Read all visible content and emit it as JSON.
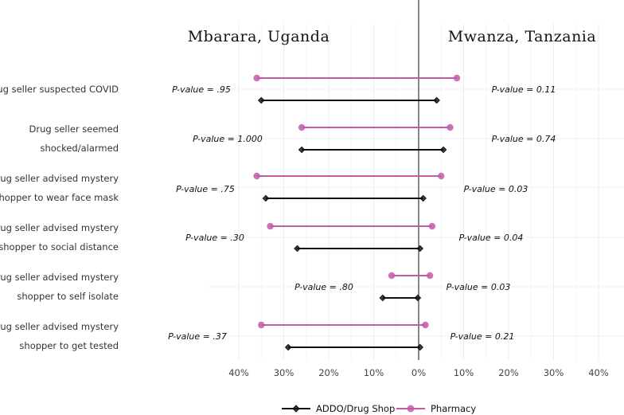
{
  "chart_data": {
    "type": "dumbbell",
    "regions": {
      "left": "Mbarara, Uganda",
      "right": "Mwanza, Tanzania"
    },
    "categories": [
      {
        "lines": [
          "Drug seller suspected COVID"
        ]
      },
      {
        "lines": [
          "Drug seller seemed",
          "shocked/alarmed"
        ]
      },
      {
        "lines": [
          "Drug seller advised mystery",
          "shopper to wear face mask"
        ]
      },
      {
        "lines": [
          "Drug seller advised mystery",
          "shopper to social distance"
        ]
      },
      {
        "lines": [
          "Drug seller advised mystery",
          "shopper to self isolate"
        ]
      },
      {
        "lines": [
          "Drug seller advised mystery",
          "shopper to get tested"
        ]
      }
    ],
    "series": [
      {
        "name": "Pharmacy",
        "color": "#c45aa6",
        "marker": "circle",
        "uganda": [
          36,
          26,
          36,
          33,
          6,
          35
        ],
        "tanzania": [
          8.5,
          7,
          5,
          3,
          2.5,
          1.5
        ]
      },
      {
        "name": "ADDO/Drug Shop",
        "color": "#111111",
        "marker": "diamond",
        "uganda": [
          35,
          26,
          34,
          27,
          8,
          29
        ],
        "tanzania": [
          4,
          5.5,
          1,
          0.3,
          -0.2,
          0.3
        ]
      }
    ],
    "pvalues": {
      "uganda": [
        "P-value = .95",
        "P-value = 1.000",
        "P-value = .75",
        "P-value = .30",
        "P-value = .80",
        "P-value = .37"
      ],
      "tanzania": [
        "P-value = 0.11",
        "P-value = 0.74",
        "P-value = 0.03",
        "P-value = 0.04",
        "P-value = 0.03",
        "P-value = 0.21"
      ]
    },
    "x_ticks": [
      {
        "value": -40,
        "label": "40%"
      },
      {
        "value": -30,
        "label": "30%"
      },
      {
        "value": -20,
        "label": "20%"
      },
      {
        "value": -10,
        "label": "10%"
      },
      {
        "value": 0,
        "label": "0%"
      },
      {
        "value": 10,
        "label": "10%"
      },
      {
        "value": 20,
        "label": "20%"
      },
      {
        "value": 30,
        "label": "30%"
      },
      {
        "value": 40,
        "label": "40%"
      }
    ],
    "xlim": [
      -40,
      40
    ],
    "legend": [
      "ADDO/Drug Shop",
      "Pharmacy"
    ],
    "grid": true
  }
}
